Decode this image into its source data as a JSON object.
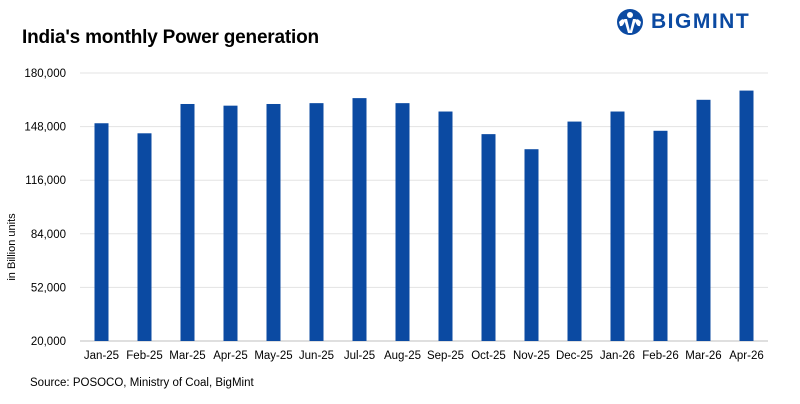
{
  "title": "India's monthly Power generation",
  "brand": {
    "name": "BIGMINT",
    "logo_icon": "bigmint-globe-icon",
    "color": "#0b4aa2"
  },
  "source": "Source: POSOCO, Ministry of Coal, BigMint",
  "chart_data": {
    "type": "bar",
    "title": "India's monthly Power generation",
    "xlabel": "",
    "ylabel": "in Billion units",
    "categories": [
      "Jan-25",
      "Feb-25",
      "Mar-25",
      "Apr-25",
      "May-25",
      "Jun-25",
      "Jul-25",
      "Aug-25",
      "Sep-25",
      "Oct-25",
      "Nov-25",
      "Dec-25",
      "Jan-26",
      "Feb-26",
      "Mar-26",
      "Apr-26"
    ],
    "series": [
      {
        "values": [
          150000,
          144000,
          161500,
          160500,
          161500,
          162000,
          165000,
          162000,
          157000,
          143500,
          134500,
          151000,
          157000,
          145500,
          164000,
          169500
        ]
      }
    ],
    "ylim": [
      20000,
      180000
    ],
    "yticks": [
      "20,000",
      "52,000",
      "84,000",
      "116,000",
      "148,000",
      "180,000"
    ],
    "ytick_values": [
      20000,
      52000,
      84000,
      116000,
      148000,
      180000
    ],
    "grid": true,
    "bar_color": "#0b4aa2"
  }
}
